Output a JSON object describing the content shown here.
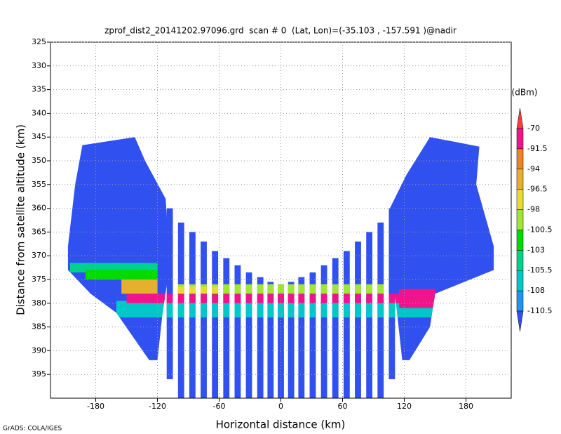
{
  "chart_data": {
    "type": "shaded",
    "title": "zprof_dist2_20141202.97096.grd  scan # 0  (Lat, Lon)=(-35.103 , -157.591 )@nadir",
    "xlabel": "Horizontal distance (km)",
    "ylabel": "Distance from satellite altitude (km)",
    "footer": "GrADS: COLA/IGES",
    "xlim": [
      -224,
      224
    ],
    "ylim": [
      325,
      400
    ],
    "y_reversed": true,
    "xticks": [
      -180,
      -120,
      -60,
      0,
      60,
      120,
      180
    ],
    "yticks": [
      325,
      330,
      335,
      340,
      345,
      350,
      355,
      360,
      365,
      370,
      375,
      380,
      385,
      390,
      395
    ],
    "grid": true,
    "colorbar": {
      "unit": "(dBm)",
      "levels": [
        -110.5,
        -108,
        -105.5,
        -103,
        -100.5,
        -98,
        -96.5,
        -94,
        -91.5,
        -70
      ],
      "colors": [
        "#3050f0",
        "#1e96f0",
        "#00c8c8",
        "#00d28c",
        "#00dc00",
        "#a0e632",
        "#e6dc32",
        "#e6af2d",
        "#f08228",
        "#f0148c",
        "#fa3c3c"
      ]
    },
    "base_value": -112,
    "regions": [
      {
        "value": -112,
        "points": [
          [
            -193,
            346.7
          ],
          [
            -142,
            345
          ],
          [
            -132,
            350
          ],
          [
            -112,
            358
          ],
          [
            -108,
            372
          ],
          [
            -115,
            382
          ],
          [
            -120,
            392
          ],
          [
            -128,
            392
          ],
          [
            -160,
            382
          ],
          [
            -185,
            378
          ],
          [
            -207,
            373
          ],
          [
            -207,
            368
          ],
          [
            -200,
            355
          ]
        ]
      },
      {
        "value": -112,
        "points": [
          [
            122,
            353
          ],
          [
            145,
            345
          ],
          [
            193,
            347
          ],
          [
            190,
            355
          ],
          [
            207,
            368
          ],
          [
            207,
            373
          ],
          [
            150,
            378
          ],
          [
            145,
            385
          ],
          [
            125,
            392
          ],
          [
            118,
            392
          ],
          [
            112,
            380
          ],
          [
            106,
            372
          ],
          [
            106,
            360
          ]
        ]
      }
    ],
    "strips": [
      [
        -111,
        -105,
        360,
        396
      ],
      [
        -100,
        -94,
        363,
        400
      ],
      [
        -89,
        -83,
        365,
        400
      ],
      [
        -78,
        -72,
        367,
        400
      ],
      [
        -67,
        -61,
        369,
        400
      ],
      [
        -56,
        -50,
        370.5,
        400
      ],
      [
        -45,
        -39,
        372,
        400
      ],
      [
        -34,
        -28,
        373.5,
        400
      ],
      [
        -23,
        -17,
        374.5,
        400
      ],
      [
        -13,
        -7,
        375.5,
        400
      ],
      [
        -3,
        3,
        376,
        400
      ],
      [
        7,
        13,
        375.5,
        400
      ],
      [
        17,
        23,
        374.5,
        400
      ],
      [
        28,
        34,
        373.5,
        400
      ],
      [
        39,
        45,
        372,
        400
      ],
      [
        50,
        56,
        370.5,
        400
      ],
      [
        61,
        67,
        369,
        400
      ],
      [
        72,
        78,
        367,
        400
      ],
      [
        83,
        89,
        365,
        400
      ],
      [
        94,
        100,
        363,
        400
      ],
      [
        105,
        111,
        360,
        396
      ]
    ],
    "bands": [
      {
        "value": -107,
        "x": [
          -160,
          160
        ],
        "y": [
          379.5,
          383
        ]
      },
      {
        "value": -104,
        "x": [
          -205,
          -120
        ],
        "y": [
          371.5,
          373.5
        ]
      },
      {
        "value": -102,
        "x": [
          -190,
          -120
        ],
        "y": [
          373,
          375
        ]
      },
      {
        "value": -99,
        "x": [
          -100,
          100
        ],
        "y": [
          376,
          378
        ]
      },
      {
        "value": -95,
        "x": [
          -155,
          -120
        ],
        "y": [
          375,
          378
        ]
      },
      {
        "value": -97,
        "x": [
          -100,
          -60
        ],
        "y": [
          376.5,
          378
        ]
      },
      {
        "value": -90,
        "x": [
          -150,
          150
        ],
        "y": [
          378,
          380
        ]
      },
      {
        "value": -90,
        "x": [
          115,
          150
        ],
        "y": [
          377,
          381
        ]
      }
    ]
  }
}
